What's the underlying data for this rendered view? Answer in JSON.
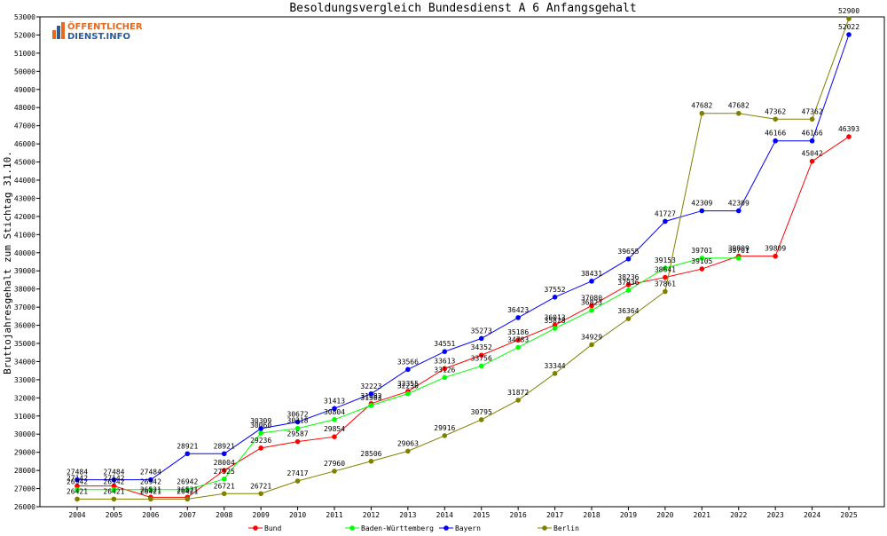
{
  "chart_data": {
    "type": "line",
    "title": "Besoldungsvergleich Bundesdienst A 6 Anfangsgehalt",
    "ylabel": "Bruttojahresgehalt zum Stichtag 31.10.",
    "xlabel": "",
    "ylim": [
      26000,
      53000
    ],
    "yticks": [
      26000,
      27000,
      28000,
      29000,
      30000,
      31000,
      32000,
      33000,
      34000,
      35000,
      36000,
      37000,
      38000,
      39000,
      40000,
      41000,
      42000,
      43000,
      44000,
      45000,
      46000,
      47000,
      48000,
      49000,
      50000,
      51000,
      52000,
      53000
    ],
    "categories": [
      "2004",
      "2005",
      "2006",
      "2007",
      "2008",
      "2009",
      "2010",
      "2011",
      "2012",
      "2013",
      "2014",
      "2015",
      "2016",
      "2017",
      "2018",
      "2019",
      "2020",
      "2021",
      "2022",
      "2023",
      "2024",
      "2025"
    ],
    "grid": false,
    "legend": "bottom",
    "series": [
      {
        "name": "Bund",
        "color": "#ff0000",
        "values": [
          27142,
          27142,
          26521,
          26521,
          28004,
          29236,
          29587,
          29854,
          31682,
          32355,
          33613,
          34352,
          35186,
          36013,
          37080,
          38236,
          38641,
          39105,
          39809,
          39809,
          45042,
          46393
        ]
      },
      {
        "name": "Baden-Württemberg",
        "color": "#00ff00",
        "values": [
          26942,
          26942,
          26942,
          26942,
          27525,
          30060,
          30318,
          30804,
          31583,
          32230,
          33126,
          33756,
          34783,
          35828,
          36823,
          37936,
          39153,
          39701,
          39701,
          null,
          null,
          null
        ]
      },
      {
        "name": "Bayern",
        "color": "#0000ff",
        "values": [
          27484,
          27484,
          27484,
          28921,
          28921,
          30309,
          30672,
          31413,
          32223,
          33566,
          34551,
          35273,
          36423,
          37552,
          38431,
          39655,
          41727,
          42309,
          42309,
          46166,
          46166,
          52022
        ]
      },
      {
        "name": "Berlin",
        "color": "#808000",
        "values": [
          26421,
          26421,
          26421,
          26421,
          26721,
          26721,
          27417,
          27960,
          28506,
          29063,
          29916,
          30795,
          31872,
          33344,
          34929,
          36364,
          37861,
          47682,
          47682,
          47362,
          47362,
          52900
        ]
      }
    ]
  },
  "logo": {
    "line1": "ÖFFENTLICHER",
    "line2": "DIENST.INFO",
    "accent_color": "#e8691e",
    "secondary_color": "#2f5a93",
    "icon": "chart-bars-icon"
  }
}
